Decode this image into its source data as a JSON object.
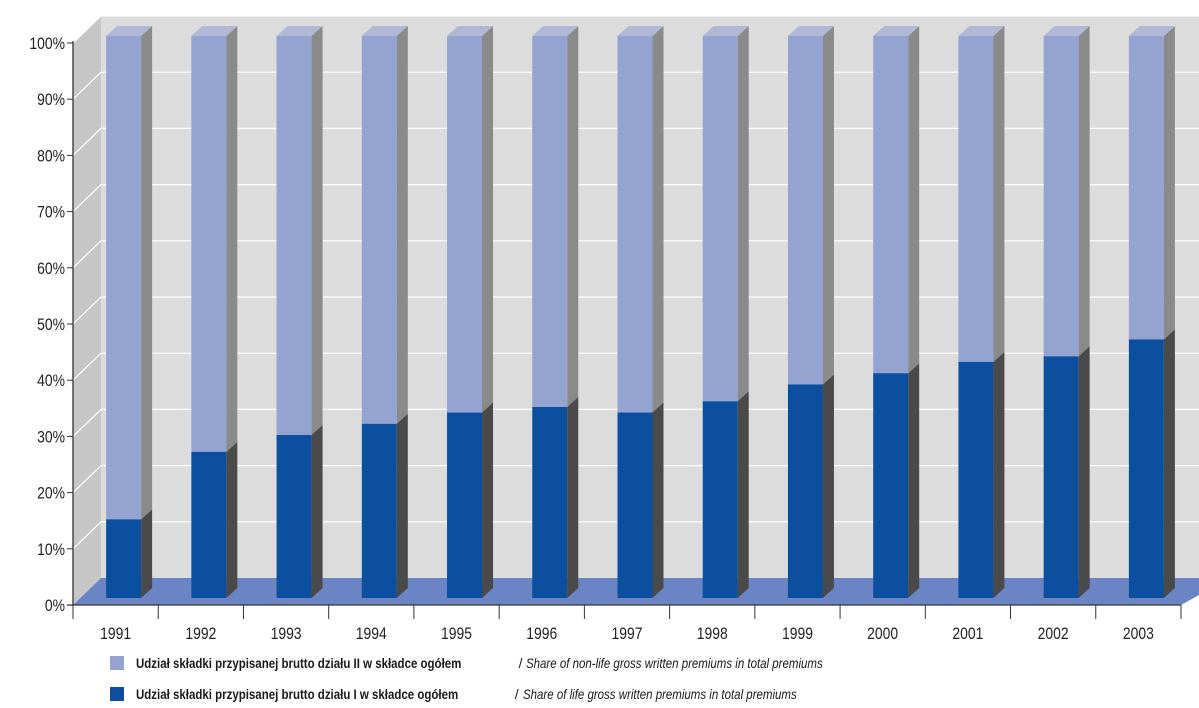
{
  "chart_data": {
    "type": "bar",
    "stacked": true,
    "percent": true,
    "categories": [
      "1991",
      "1992",
      "1993",
      "1994",
      "1995",
      "1996",
      "1997",
      "1998",
      "1999",
      "2000",
      "2001",
      "2002",
      "2003"
    ],
    "series": [
      {
        "name_pl": "Udział składki przypisanej brutto działu I w składce ogółem",
        "name_en": "Share of life gross written premiums in total premiums",
        "values": [
          14,
          26,
          29,
          31,
          33,
          34,
          33,
          35,
          38,
          40,
          42,
          43,
          46
        ]
      },
      {
        "name_pl": "Udział składki przypisanej brutto działu II w składce ogółem",
        "name_en": "Share of non-life gross written premiums in total premiums",
        "values": [
          86,
          74,
          71,
          69,
          67,
          66,
          67,
          65,
          62,
          60,
          58,
          57,
          54
        ]
      }
    ],
    "ylim": [
      0,
      100
    ],
    "yticks": [
      "0%",
      "10%",
      "20%",
      "30%",
      "40%",
      "50%",
      "60%",
      "70%",
      "80%",
      "90%",
      "100%"
    ],
    "grid": true,
    "legend_position": "bottom",
    "colors": {
      "life": "#0b4f9e",
      "non_life": "#94a3d0",
      "floor": "#6b84c4",
      "wall": "#d9d9d9"
    }
  },
  "legend": {
    "items": [
      {
        "label_pl": "Udział składki przypisanej brutto działu II w składce ogółem",
        "sep": " / ",
        "label_en": "Share of non-life gross written premiums in total premiums",
        "color": "#94a3d0"
      },
      {
        "label_pl": "Udział składki przypisanej brutto działu I w składce ogółem",
        "sep": " / ",
        "label_en": "Share of life gross written premiums in total premiums",
        "color": "#0b4f9e"
      }
    ]
  }
}
